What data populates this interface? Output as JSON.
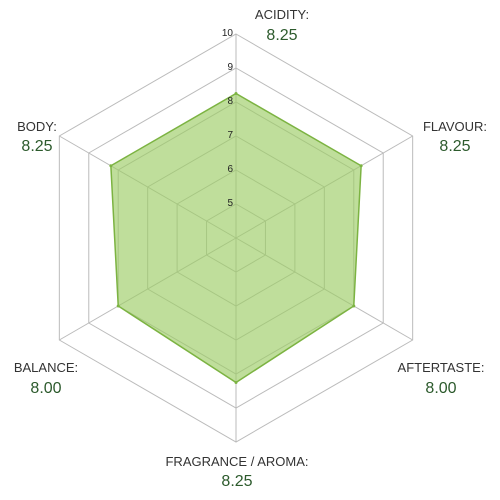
{
  "chart_data": {
    "type": "radar",
    "axes": [
      {
        "name": "ACIDITY:",
        "value_text": "8.25",
        "value": 8.25
      },
      {
        "name": "FLAVOUR:",
        "value_text": "8.25",
        "value": 8.25
      },
      {
        "name": "AFTERTASTE:",
        "value_text": "8.00",
        "value": 8.0
      },
      {
        "name": "FRAGRANCE / AROMA:",
        "value_text": "8.25",
        "value": 8.25
      },
      {
        "name": "BALANCE:",
        "value_text": "8.00",
        "value": 8.0
      },
      {
        "name": "BODY:",
        "value_text": "8.25",
        "value": 8.25
      }
    ],
    "range": [
      4,
      10
    ],
    "ticks": [
      "5",
      "6",
      "7",
      "8",
      "9",
      "10"
    ],
    "grid": true,
    "fill_color": "#9ccc65",
    "line_color": "#7cb342",
    "grid_color": "#bbbbbb",
    "label_color": "#2c5a2c"
  }
}
